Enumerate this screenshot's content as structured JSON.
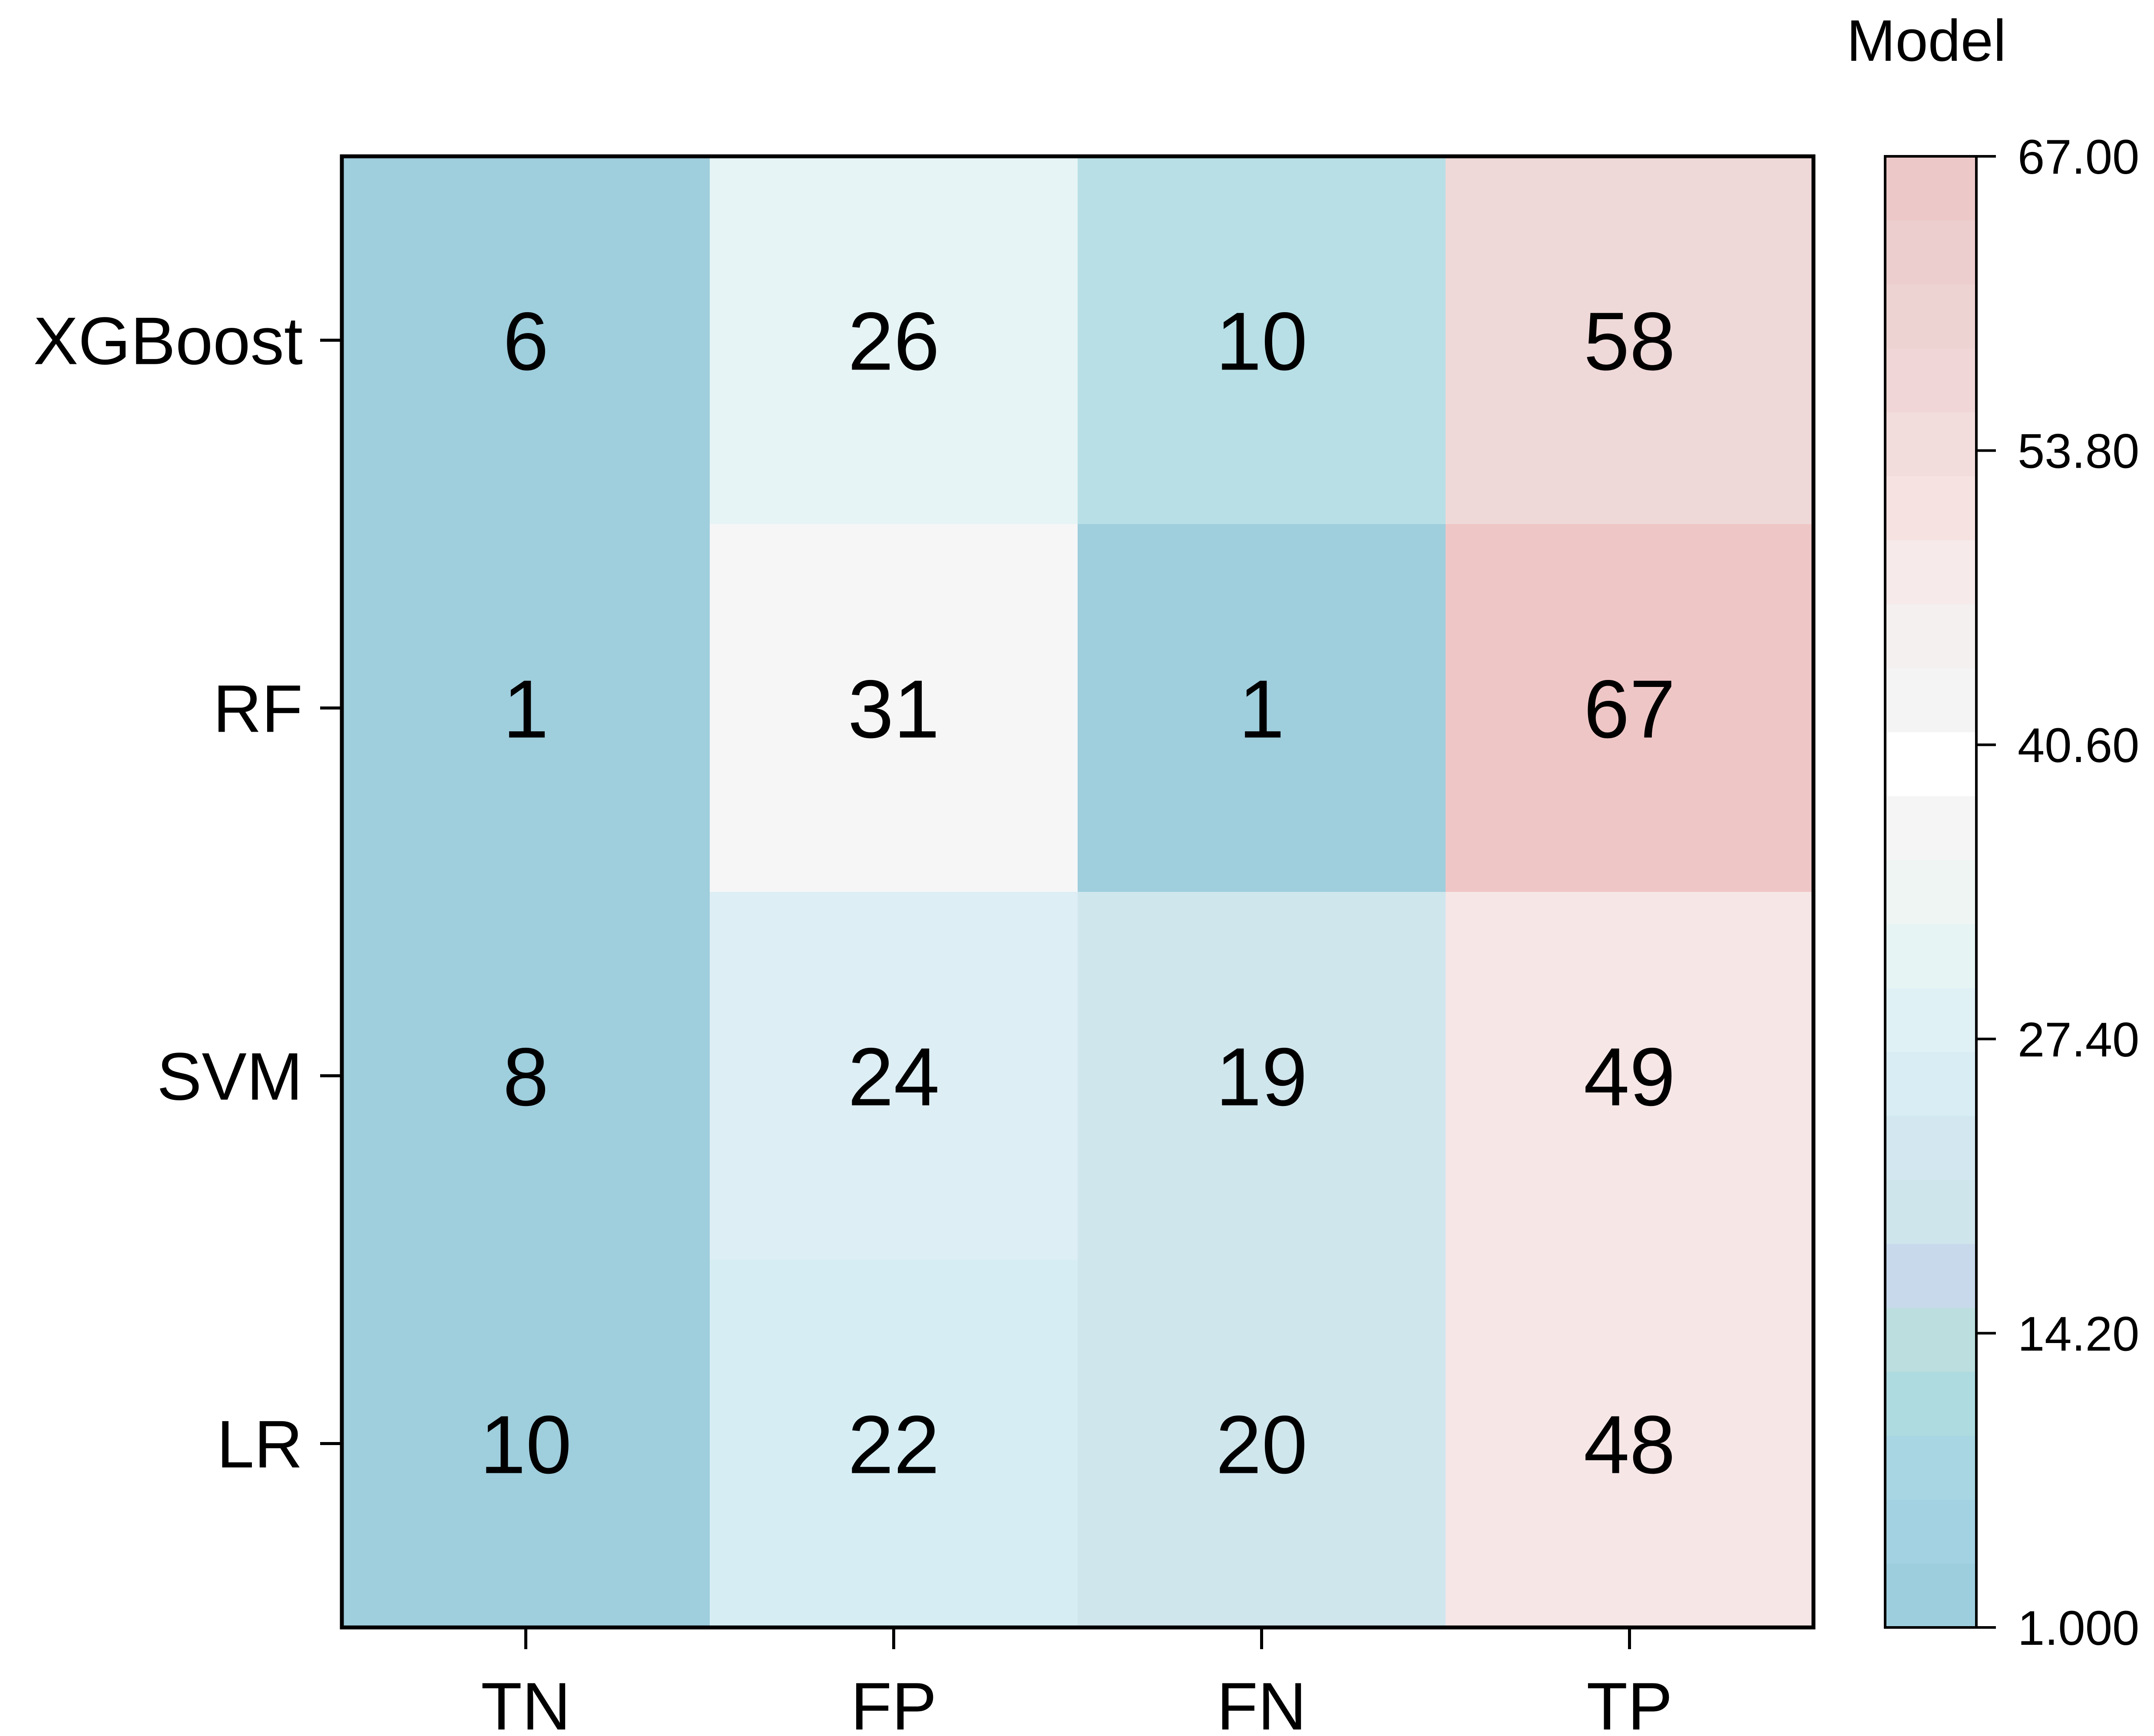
{
  "chart_data": {
    "type": "heatmap",
    "title": "",
    "xlabel": "",
    "ylabel": "",
    "x_categories": [
      "TN",
      "FP",
      "FN",
      "TP"
    ],
    "y_categories": [
      "XGBoost",
      "RF",
      "SVM",
      "LR"
    ],
    "values": [
      [
        6,
        26,
        10,
        58
      ],
      [
        1,
        31,
        1,
        67
      ],
      [
        8,
        24,
        19,
        49
      ],
      [
        10,
        22,
        20,
        48
      ]
    ],
    "colorbar": {
      "title": "Model",
      "min": 1.0,
      "max": 67.0,
      "ticks": [
        1.0,
        14.2,
        27.4,
        40.6,
        53.8,
        67.0
      ],
      "tick_labels": [
        "1.000",
        "14.20",
        "27.40",
        "40.60",
        "53.80",
        "67.00"
      ],
      "bands": [
        "#9dcedd",
        "#a3d3e2",
        "#a8d6e3",
        "#aedbe0",
        "#bcdedf",
        "#c8d9ec",
        "#cfe5ec",
        "#d2e7ef",
        "#d8edf4",
        "#e0f1f5",
        "#e6f4f3",
        "#eef5f3",
        "#f4f5f4",
        "#ffffff",
        "#f4f4f4",
        "#f4f0f0",
        "#f7eaea",
        "#f7e2e2",
        "#f3dcdc",
        "#f0d6d6",
        "#eed3d3",
        "#eccece",
        "#ecc8c8"
      ]
    },
    "cell_colors": [
      [
        "#9fcedd",
        "#e6f4f5",
        "#b8dfe6",
        "#efd8d8"
      ],
      [
        "#9fcedd",
        "#f6f6f7",
        "#9fcedd",
        "#efc6c6"
      ],
      [
        "#9fcedd",
        "#ddeef4",
        "#d0e6ed",
        "#f6e6e6"
      ],
      [
        "#9fcedd",
        "#d6edf4",
        "#d0e6ed",
        "#f6e6e6"
      ]
    ]
  }
}
